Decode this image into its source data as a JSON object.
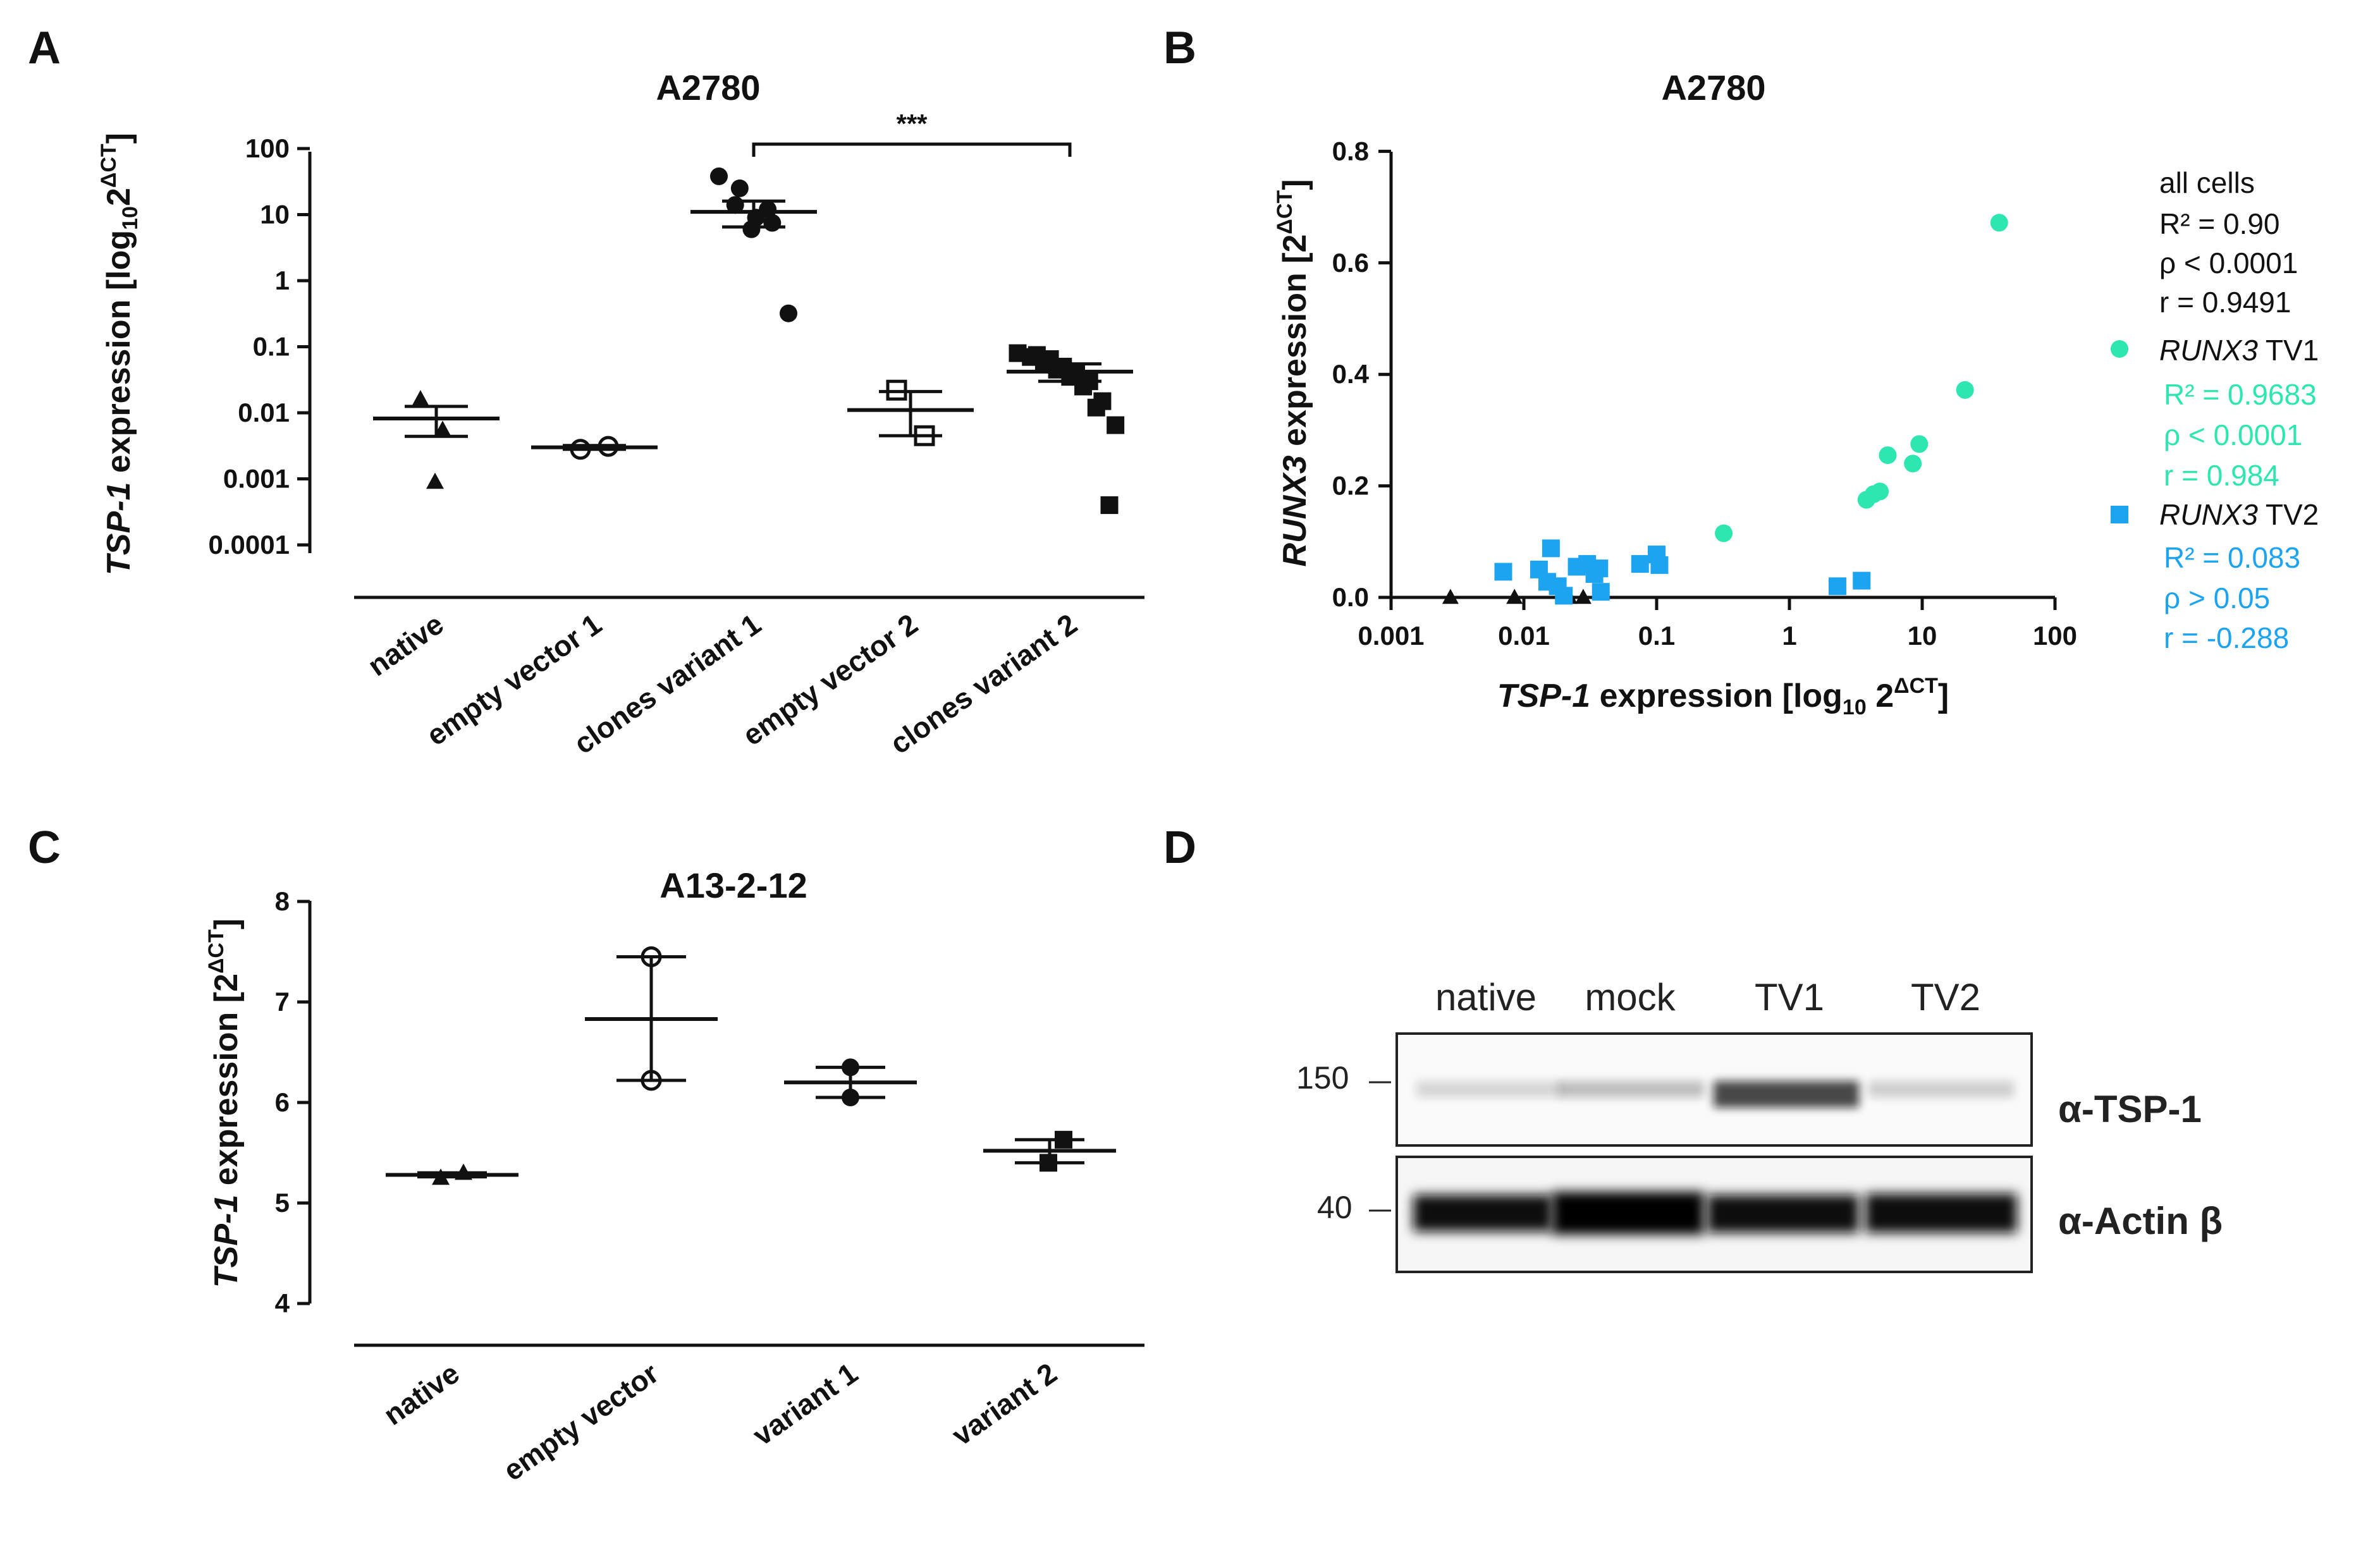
{
  "panels": {
    "a": "A",
    "b": "B",
    "c": "C",
    "d": "D"
  },
  "colors": {
    "black": "#111111",
    "tv1": "#2ee6b0",
    "tv2": "#1ca4f0"
  },
  "chart_data": [
    {
      "id": "A",
      "type": "scatter",
      "title": "A2780",
      "y_scale": "log10",
      "ylim": [
        0.0001,
        100
      ],
      "ylabel_italic": "TSP-1",
      "ylabel_main": " expression [log",
      "ylabel_sub": "10",
      "ylabel_base": "2",
      "ylabel_sup": "ΔCT",
      "ylabel_close": "]",
      "yticks": [
        "100",
        "10",
        "1",
        "0.1",
        "0.01",
        "0.001",
        "0.0001"
      ],
      "ytick_values": [
        100,
        10,
        1,
        0.1,
        0.01,
        0.001,
        0.0001
      ],
      "categories": [
        "native",
        "empty vector 1",
        "clones variant 1",
        "empty vector 2",
        "clones variant 2"
      ],
      "significance": {
        "label": "***",
        "from": "clones variant 1",
        "to": "clones variant 2"
      },
      "groups": [
        {
          "category": "native",
          "marker": "triangle-filled",
          "points": [
            0.016,
            0.0055,
            0.0009
          ],
          "mean": 0.0082,
          "sem_low": 0.0044,
          "sem_high": 0.0125
        },
        {
          "category": "empty vector 1",
          "marker": "circle-open",
          "points": [
            0.0028,
            0.0031
          ],
          "mean": 0.003,
          "sem_low": 0.0028,
          "sem_high": 0.0032
        },
        {
          "category": "clones variant 1",
          "marker": "circle-filled",
          "points": [
            38,
            25,
            14,
            9,
            6,
            7.5,
            12,
            0.32
          ],
          "mean": 11,
          "sem_low": 6.5,
          "sem_high": 16
        },
        {
          "category": "empty vector 2",
          "marker": "square-open",
          "points": [
            0.022,
            0.0045
          ],
          "mean": 0.011,
          "sem_low": 0.0045,
          "sem_high": 0.021
        },
        {
          "category": "clones variant 2",
          "marker": "square-filled",
          "points": [
            0.08,
            0.075,
            0.07,
            0.065,
            0.06,
            0.05,
            0.045,
            0.04,
            0.035,
            0.03,
            0.025,
            0.015,
            0.012,
            0.0065,
            0.0004
          ],
          "mean": 0.042,
          "sem_low": 0.03,
          "sem_high": 0.055
        }
      ]
    },
    {
      "id": "B",
      "type": "scatter",
      "title": "A2780",
      "x_scale": "log10",
      "xlim": [
        0.001,
        100
      ],
      "ylim": [
        0,
        0.8
      ],
      "xticks": [
        "0.001",
        "0.01",
        "0.1",
        "1",
        "10",
        "100"
      ],
      "xtick_values": [
        0.001,
        0.01,
        0.1,
        1,
        10,
        100
      ],
      "yticks": [
        "0.0",
        "0.2",
        "0.4",
        "0.6",
        "0.8"
      ],
      "ytick_values": [
        0,
        0.2,
        0.4,
        0.6,
        0.8
      ],
      "xlabel_italic": "TSP-1",
      "xlabel_main": " expression [log",
      "xlabel_sub": "10",
      "xlabel_base": " 2",
      "xlabel_sup": "ΔCT",
      "xlabel_close": "]",
      "ylabel_italic": "RUNX3",
      "ylabel_main": " expression [2",
      "ylabel_sup": "ΔCT",
      "ylabel_close": "]",
      "legend": {
        "all_title": "all cells",
        "all_stats": [
          "R² = 0.90",
          "ρ < 0.0001",
          "r = 0.9491"
        ],
        "tv1_italic": "RUNX3",
        "tv1_label": " TV1",
        "tv1_stats": [
          "R² = 0.9683",
          "ρ < 0.0001",
          "r = 0.984"
        ],
        "tv2_italic": "RUNX3",
        "tv2_label": " TV2",
        "tv2_stats": [
          "R² = 0.083",
          "ρ > 0.05",
          "r = -0.288"
        ]
      },
      "series": [
        {
          "name": "native",
          "marker": "triangle",
          "color": "#111111",
          "x": [
            0.0028,
            0.0085,
            0.022,
            0.028
          ],
          "y": [
            0.0,
            0.0,
            0.0,
            0.0
          ]
        },
        {
          "name": "RUNX3 TV1",
          "marker": "circle",
          "color": "#2ee6b0",
          "x": [
            0.32,
            3.8,
            4.3,
            4.8,
            5.5,
            8.5,
            9.5,
            21,
            38
          ],
          "y": [
            0.115,
            0.175,
            0.185,
            0.19,
            0.255,
            0.24,
            0.275,
            0.372,
            0.672
          ]
        },
        {
          "name": "RUNX3 TV2",
          "marker": "square",
          "color": "#1ca4f0",
          "x": [
            0.007,
            0.013,
            0.015,
            0.016,
            0.018,
            0.02,
            0.025,
            0.03,
            0.034,
            0.037,
            0.038,
            0.075,
            0.1,
            0.105,
            2.3,
            3.5
          ],
          "y": [
            0.046,
            0.05,
            0.028,
            0.088,
            0.02,
            0.003,
            0.055,
            0.06,
            0.042,
            0.052,
            0.01,
            0.06,
            0.077,
            0.058,
            0.02,
            0.03
          ]
        }
      ]
    },
    {
      "id": "C",
      "type": "scatter",
      "title": "A13-2-12",
      "ylim": [
        4,
        8
      ],
      "yticks": [
        "8",
        "7",
        "6",
        "5",
        "4"
      ],
      "ytick_values": [
        8,
        7,
        6,
        5,
        4
      ],
      "ylabel_italic": "TSP-1",
      "ylabel_main": " expression [2",
      "ylabel_sup": "ΔCT",
      "ylabel_close": "]",
      "categories": [
        "native",
        "empty vector",
        "variant 1",
        "variant 2"
      ],
      "groups": [
        {
          "category": "native",
          "marker": "triangle-filled",
          "points": [
            5.3,
            5.25
          ],
          "mean": 5.28,
          "sem_low": 5.26,
          "sem_high": 5.3
        },
        {
          "category": "empty vector",
          "marker": "circle-open",
          "points": [
            7.45,
            6.22
          ],
          "mean": 6.83,
          "sem_low": 6.22,
          "sem_high": 7.45
        },
        {
          "category": "variant 1",
          "marker": "circle-filled",
          "points": [
            6.35,
            6.05
          ],
          "mean": 6.2,
          "sem_low": 6.05,
          "sem_high": 6.35
        },
        {
          "category": "variant 2",
          "marker": "square-filled",
          "points": [
            5.63,
            5.4
          ],
          "mean": 5.52,
          "sem_low": 5.4,
          "sem_high": 5.63
        }
      ]
    }
  ],
  "western_blot": {
    "lanes": [
      "native",
      "mock",
      "TV1",
      "TV2"
    ],
    "markers": [
      "150",
      "40"
    ],
    "antibodies": [
      "α-TSP-1",
      "α-Actin β"
    ],
    "tsp1_intensity": [
      0.15,
      0.25,
      0.75,
      0.18
    ]
  }
}
